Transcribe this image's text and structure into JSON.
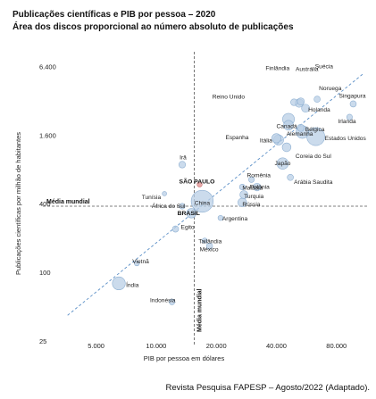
{
  "title": "Publicações científicas e PIB por pessoa – 2020",
  "subtitle": "Área dos discos proporcional ao número absoluto de publicações",
  "source": "Revista Pesquisa FAPESP – Agosto/2022 (Adaptado).",
  "chart_data": {
    "type": "scatter",
    "title": "Publicações científicas e PIB por pessoa – 2020",
    "subtitle": "Área dos discos proporcional ao número absoluto de publicações",
    "xlabel": "PIB por pessoa em dólares",
    "ylabel": "Publicações científicas por milhão de habitantes",
    "x_scale": "log",
    "y_scale": "log",
    "xlim": [
      3000,
      115000
    ],
    "ylim": [
      25,
      8000
    ],
    "x_ticks": [
      {
        "value": 5000,
        "label": "5.000"
      },
      {
        "value": 10000,
        "label": "10.000"
      },
      {
        "value": 20000,
        "label": "20.000"
      },
      {
        "value": 40000,
        "label": "40.000"
      },
      {
        "value": 80000,
        "label": "80.000"
      }
    ],
    "y_ticks": [
      {
        "value": 25,
        "label": "25"
      },
      {
        "value": 100,
        "label": "100"
      },
      {
        "value": 400,
        "label": "400"
      },
      {
        "value": 1600,
        "label": "1.600"
      },
      {
        "value": 6400,
        "label": "6.400"
      }
    ],
    "reference_lines": {
      "x": {
        "value": 15500,
        "label": "Média mundial"
      },
      "y": {
        "value": 380,
        "label": "Média mundial"
      }
    },
    "trend_line": {
      "x": [
        3600,
        110000
      ],
      "y": [
        42,
        5600
      ]
    },
    "grid": false,
    "points": [
      {
        "name": "Finlândia",
        "x": 49000,
        "y": 3100,
        "size": 0.7
      },
      {
        "name": "Austrália",
        "x": 52000,
        "y": 3050,
        "size": 1.1
      },
      {
        "name": "Suécia",
        "x": 53000,
        "y": 3150,
        "size": 0.8
      },
      {
        "name": "Reino Unido",
        "x": 46000,
        "y": 2200,
        "size": 2.2
      },
      {
        "name": "Noruega",
        "x": 64000,
        "y": 3300,
        "size": 0.6
      },
      {
        "name": "Singapura",
        "x": 97000,
        "y": 3000,
        "size": 0.6
      },
      {
        "name": "Holanda",
        "x": 56000,
        "y": 2750,
        "size": 1.0
      },
      {
        "name": "Irlanda",
        "x": 93000,
        "y": 2300,
        "size": 0.5
      },
      {
        "name": "Canadá",
        "x": 46000,
        "y": 1950,
        "size": 1.5
      },
      {
        "name": "Bélgica",
        "x": 53000,
        "y": 1850,
        "size": 0.8
      },
      {
        "name": "Alemanha",
        "x": 54000,
        "y": 1700,
        "size": 2.5
      },
      {
        "name": "Espanha",
        "x": 40000,
        "y": 1500,
        "size": 1.3
      },
      {
        "name": "Itália",
        "x": 41000,
        "y": 1450,
        "size": 1.6
      },
      {
        "name": "Estados Unidos",
        "x": 63000,
        "y": 1550,
        "size": 5.0
      },
      {
        "name": "Coreia do Sul",
        "x": 45000,
        "y": 1250,
        "size": 1.2
      },
      {
        "name": "Japão",
        "x": 43000,
        "y": 900,
        "size": 2.0
      },
      {
        "name": "Arábia Saudita",
        "x": 47000,
        "y": 680,
        "size": 0.6
      },
      {
        "name": "Irã",
        "x": 13500,
        "y": 880,
        "size": 0.7
      },
      {
        "name": "Romênia",
        "x": 30000,
        "y": 650,
        "size": 0.5
      },
      {
        "name": "SÃO PAULO",
        "x": 16500,
        "y": 590,
        "size": 0.4,
        "highlight": true
      },
      {
        "name": "Malásia",
        "x": 27000,
        "y": 560,
        "size": 0.5
      },
      {
        "name": "Polônia",
        "x": 32000,
        "y": 560,
        "size": 0.9
      },
      {
        "name": "Tunísia",
        "x": 11000,
        "y": 490,
        "size": 0.3
      },
      {
        "name": "Turquia",
        "x": 27500,
        "y": 480,
        "size": 1.0
      },
      {
        "name": "China",
        "x": 17000,
        "y": 420,
        "size": 7.5
      },
      {
        "name": "Rússia",
        "x": 27000,
        "y": 410,
        "size": 1.2
      },
      {
        "name": "África do Sul",
        "x": 13500,
        "y": 380,
        "size": 0.5
      },
      {
        "name": "BRASIL",
        "x": 15000,
        "y": 330,
        "size": 1.4
      },
      {
        "name": "Argentina",
        "x": 21000,
        "y": 300,
        "size": 0.4
      },
      {
        "name": "Egito",
        "x": 12500,
        "y": 240,
        "size": 0.6
      },
      {
        "name": "Tailândia",
        "x": 17500,
        "y": 190,
        "size": 0.4
      },
      {
        "name": "México",
        "x": 18500,
        "y": 170,
        "size": 0.6
      },
      {
        "name": "Vietnã",
        "x": 8000,
        "y": 120,
        "size": 0.4
      },
      {
        "name": "Índia",
        "x": 6500,
        "y": 80,
        "size": 2.6
      },
      {
        "name": "Indonésia",
        "x": 12000,
        "y": 55,
        "size": 0.5
      }
    ]
  }
}
